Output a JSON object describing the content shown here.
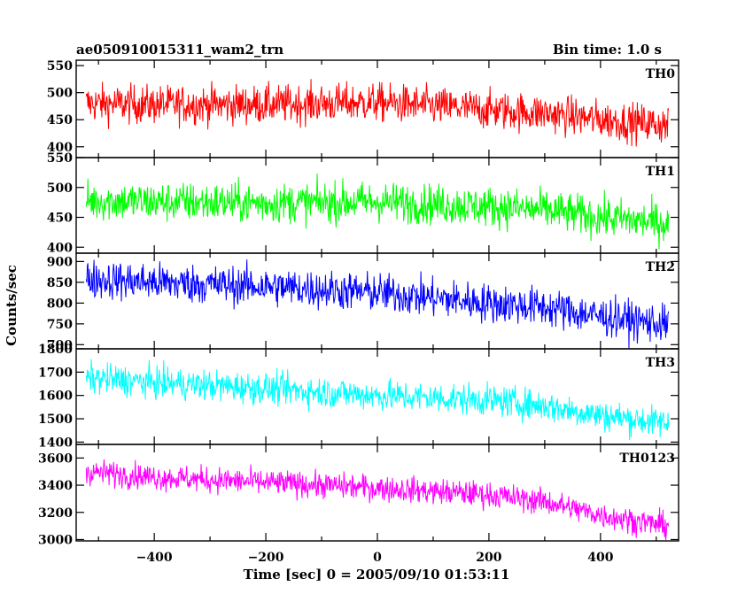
{
  "chart_data": {
    "type": "line",
    "title": "ae050910015311_wam2_trn",
    "bin_time": "Bin time: 1.0 s",
    "xlabel": "Time [sec] 0 = 2005/09/10 01:53:11",
    "ylabel": "Counts/sec",
    "x_range": [
      -540,
      540
    ],
    "x_ticks": [
      "−400",
      "−200",
      "0",
      "200",
      "400"
    ],
    "x_tick_values": [
      -400,
      -200,
      0,
      200,
      400
    ],
    "grid": false,
    "panels": [
      {
        "name": "TH0",
        "color": "#ff0000",
        "ylim": [
          380,
          560
        ],
        "yticks": [
          400,
          450,
          500,
          550
        ],
        "trend": {
          "x": [
            -520,
            -400,
            -200,
            0,
            200,
            300,
            400,
            520
          ],
          "y": [
            480,
            478,
            478,
            482,
            468,
            462,
            450,
            440
          ]
        },
        "noise_amplitude": 32
      },
      {
        "name": "TH1",
        "color": "#00ff00",
        "ylim": [
          390,
          550
        ],
        "yticks": [
          400,
          450,
          500,
          550
        ],
        "trend": {
          "x": [
            -520,
            -400,
            -200,
            0,
            200,
            300,
            400,
            520
          ],
          "y": [
            478,
            476,
            474,
            476,
            468,
            462,
            450,
            440
          ]
        },
        "noise_amplitude": 30
      },
      {
        "name": "TH2",
        "color": "#0000ff",
        "ylim": [
          690,
          920
        ],
        "yticks": [
          700,
          750,
          800,
          850,
          900
        ],
        "trend": {
          "x": [
            -520,
            -400,
            -200,
            0,
            200,
            300,
            400,
            520
          ],
          "y": [
            858,
            850,
            840,
            825,
            800,
            790,
            768,
            748
          ]
        },
        "noise_amplitude": 42
      },
      {
        "name": "TH3",
        "color": "#00ffff",
        "ylim": [
          1390,
          1800
        ],
        "yticks": [
          1400,
          1500,
          1600,
          1700,
          1800
        ],
        "trend": {
          "x": [
            -520,
            -400,
            -200,
            0,
            200,
            300,
            400,
            520
          ],
          "y": [
            1675,
            1655,
            1630,
            1600,
            1580,
            1555,
            1515,
            1480
          ]
        },
        "noise_amplitude": 60
      },
      {
        "name": "TH0123",
        "color": "#ff00ff",
        "ylim": [
          2990,
          3700
        ],
        "yticks": [
          3000,
          3200,
          3400,
          3600
        ],
        "trend": {
          "x": [
            -520,
            -400,
            -200,
            0,
            200,
            300,
            400,
            520
          ],
          "y": [
            3500,
            3460,
            3420,
            3380,
            3330,
            3280,
            3180,
            3100
          ]
        },
        "noise_amplitude": 85
      }
    ]
  }
}
